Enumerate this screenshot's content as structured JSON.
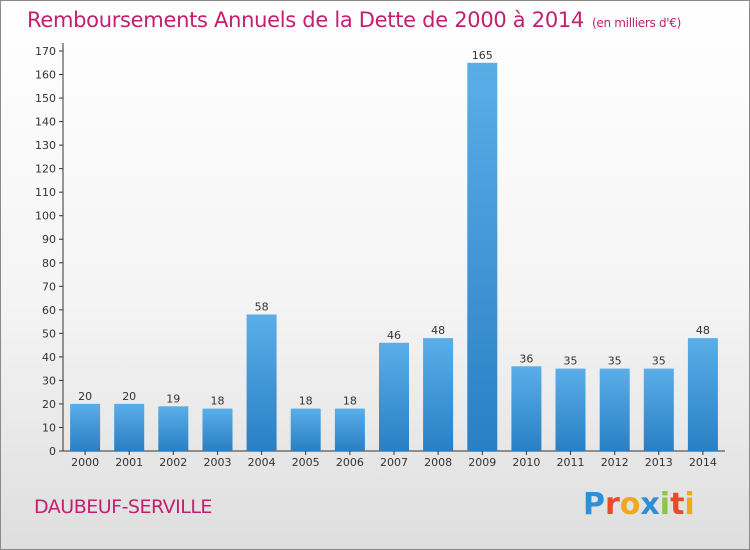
{
  "header": {
    "title": "Remboursements Annuels de la Dette de 2000 à 2014",
    "unit": "(en milliers d'€)"
  },
  "footer": {
    "commune": "DAUBEUF-SERVILLE",
    "brand_letters": [
      "P",
      "r",
      "o",
      "x",
      "i",
      "t",
      "i"
    ],
    "brand_colors": [
      "#2e8fd6",
      "#e84a2a",
      "#f0a81c",
      "#2e8fd6",
      "#8cc63f",
      "#e84a2a",
      "#f0a81c"
    ]
  },
  "colors": {
    "title": "#c41e70",
    "bar_top": "#5aaee8",
    "bar_bottom": "#2a7fc4",
    "axis": "#333333"
  },
  "chart_data": {
    "type": "bar",
    "title": "Remboursements Annuels de la Dette de 2000 à 2014",
    "ylabel": "en milliers d'€",
    "xlabel": "",
    "categories": [
      "2000",
      "2001",
      "2002",
      "2003",
      "2004",
      "2005",
      "2006",
      "2007",
      "2008",
      "2009",
      "2010",
      "2011",
      "2012",
      "2013",
      "2014"
    ],
    "values": [
      20,
      20,
      19,
      18,
      58,
      18,
      18,
      46,
      48,
      165,
      36,
      35,
      35,
      35,
      48
    ],
    "ylim": [
      0,
      170
    ],
    "yticks": [
      0,
      10,
      20,
      30,
      40,
      50,
      60,
      70,
      80,
      90,
      100,
      110,
      120,
      130,
      140,
      150,
      160,
      170
    ],
    "grid": false,
    "legend": "none"
  }
}
